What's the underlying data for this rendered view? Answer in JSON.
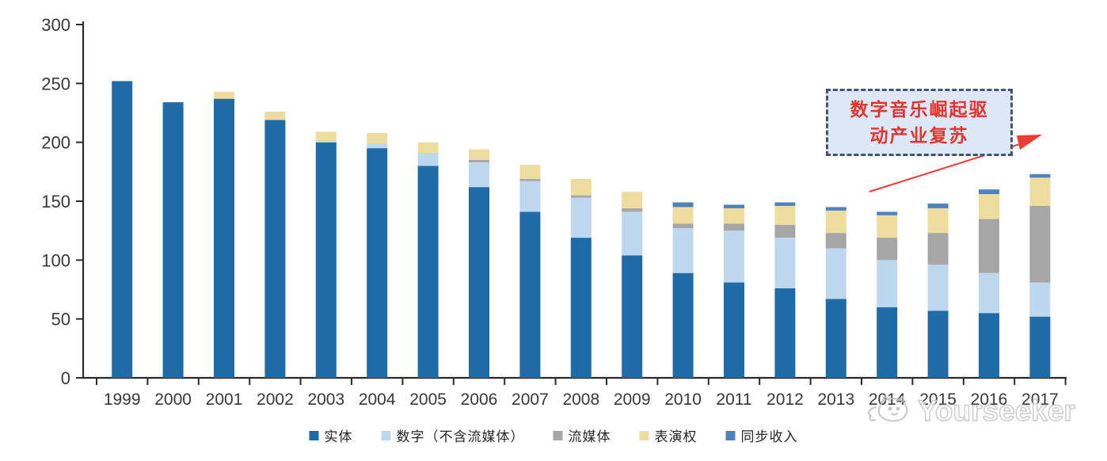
{
  "chart_data": {
    "type": "bar",
    "stacked": true,
    "title": "",
    "categories": [
      "1999",
      "2000",
      "2001",
      "2002",
      "2003",
      "2004",
      "2005",
      "2006",
      "2007",
      "2008",
      "2009",
      "2010",
      "2011",
      "2012",
      "2013",
      "2014",
      "2015",
      "2016",
      "2017"
    ],
    "series": [
      {
        "name": "实体",
        "color": "#1F6BA8",
        "values": [
          252,
          234,
          237,
          219,
          200,
          195,
          180,
          162,
          141,
          119,
          104,
          89,
          81,
          76,
          67,
          60,
          57,
          55,
          52
        ]
      },
      {
        "name": "数字（不含流媒体）",
        "color": "#BDD7EE",
        "values": [
          0,
          0,
          0,
          0,
          1,
          4,
          11,
          21,
          26,
          34,
          37,
          38,
          44,
          43,
          43,
          40,
          39,
          34,
          29
        ]
      },
      {
        "name": "流媒体",
        "color": "#A6A6A6",
        "values": [
          0,
          0,
          0,
          0,
          0,
          0,
          0,
          2,
          2,
          2,
          3,
          4,
          6,
          11,
          13,
          19,
          27,
          46,
          65
        ]
      },
      {
        "name": "表演权",
        "color": "#EDDC9E",
        "values": [
          0,
          0,
          6,
          7,
          8,
          9,
          9,
          9,
          12,
          14,
          14,
          14,
          13,
          16,
          19,
          19,
          21,
          21,
          24
        ]
      },
      {
        "name": "同步收入",
        "color": "#4E82BF",
        "values": [
          0,
          0,
          0,
          0,
          0,
          0,
          0,
          0,
          0,
          0,
          0,
          4,
          3,
          3,
          3,
          3,
          4,
          4,
          3
        ]
      }
    ],
    "ylim": [
      0,
      300
    ],
    "yticks": [
      0,
      50,
      100,
      150,
      200,
      250,
      300
    ],
    "xlabel": "",
    "ylabel": "",
    "grid": false,
    "legend_position": "bottom",
    "annotation": {
      "line1": "数字音乐崛起驱",
      "line2": "动产业复苏",
      "full_text": "数字音乐崛起驱动产业复苏"
    }
  },
  "colors": {
    "axis": "#2b2b2b",
    "tick_label": "#383838",
    "annotation_text": "#E5352B",
    "annotation_box_fill": "#DCE8F7",
    "annotation_box_border": "#44546A",
    "arrow": "#EF3B32",
    "watermark": "#C2C2C2"
  },
  "watermark": {
    "text": "Yourseeker",
    "logo": "cat-logo"
  }
}
